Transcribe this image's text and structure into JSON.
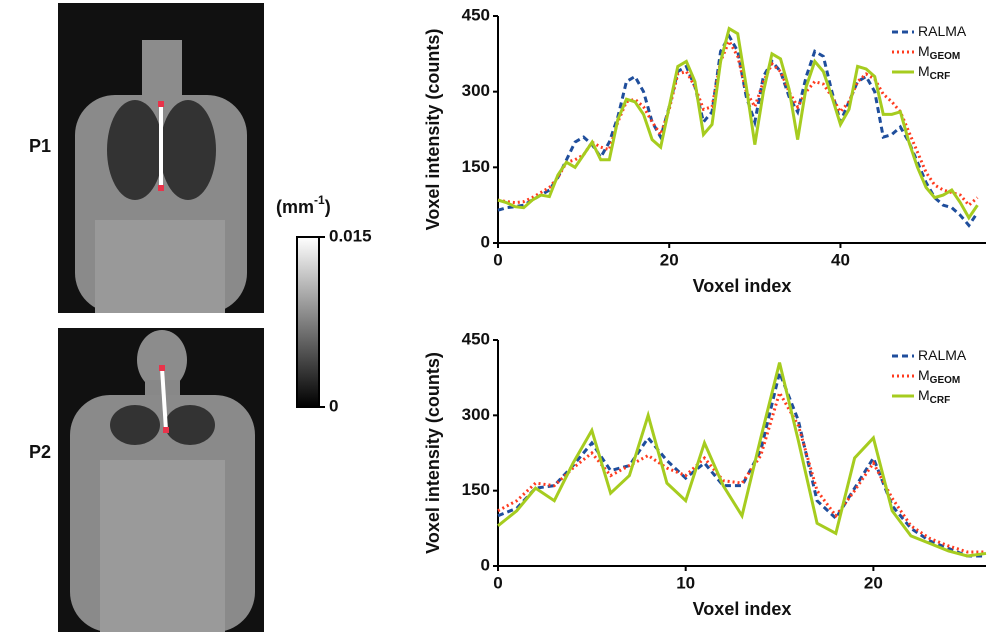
{
  "panels": [
    {
      "label": "P1"
    },
    {
      "label": "P2"
    }
  ],
  "colorbar": {
    "unit": "(mm",
    "unit_sup": "-1",
    "unit_end": ")",
    "lim": [
      0,
      0.015
    ],
    "ticks": [
      0,
      0.015
    ]
  },
  "chart_data": [
    {
      "type": "line",
      "x_label": "Voxel index",
      "y_label": "Voxel intensity (counts)",
      "x": [
        0,
        1,
        2,
        3,
        4,
        5,
        6,
        7,
        8,
        9,
        10,
        11,
        12,
        13,
        14,
        15,
        16,
        17,
        18,
        19,
        20,
        21,
        22,
        23,
        24,
        25,
        26,
        27,
        28,
        29,
        30,
        31,
        32,
        33,
        34,
        35,
        36,
        37,
        38,
        39,
        40,
        41,
        42,
        43,
        44,
        45,
        46,
        47,
        48,
        49,
        50,
        51,
        52,
        53,
        54,
        55,
        56
      ],
      "xlim": [
        0,
        57
      ],
      "xticks": [
        0,
        20,
        40
      ],
      "ylim": [
        0,
        450
      ],
      "yticks": [
        0,
        150,
        300,
        450
      ],
      "series": [
        {
          "name": "RALMA",
          "color": "#1f4e9c",
          "dash": "6,4",
          "values": [
            65,
            70,
            72,
            75,
            85,
            95,
            105,
            130,
            165,
            200,
            210,
            195,
            170,
            200,
            250,
            320,
            330,
            300,
            240,
            210,
            270,
            340,
            350,
            310,
            240,
            260,
            380,
            410,
            380,
            290,
            240,
            330,
            360,
            340,
            290,
            260,
            330,
            380,
            370,
            300,
            240,
            280,
            320,
            330,
            300,
            210,
            215,
            230,
            200,
            160,
            120,
            90,
            75,
            70,
            55,
            35,
            60
          ]
        },
        {
          "name": "M",
          "subscript": "GEOM",
          "color": "#ff3b1f",
          "dash": "2,3",
          "values": [
            85,
            82,
            80,
            82,
            90,
            100,
            110,
            130,
            160,
            165,
            175,
            200,
            190,
            185,
            240,
            280,
            285,
            270,
            240,
            215,
            265,
            335,
            340,
            310,
            265,
            270,
            360,
            400,
            370,
            300,
            270,
            320,
            355,
            340,
            300,
            270,
            300,
            320,
            315,
            290,
            260,
            280,
            320,
            335,
            325,
            295,
            280,
            260,
            220,
            180,
            140,
            115,
            105,
            100,
            95,
            75,
            90
          ]
        },
        {
          "name": "M",
          "subscript": "CRF",
          "color": "#a6cc1f",
          "dash": "",
          "values": [
            85,
            80,
            72,
            70,
            85,
            95,
            92,
            135,
            160,
            150,
            175,
            200,
            165,
            165,
            245,
            285,
            280,
            255,
            205,
            190,
            270,
            350,
            360,
            320,
            215,
            235,
            360,
            425,
            415,
            310,
            195,
            300,
            375,
            365,
            305,
            205,
            310,
            360,
            340,
            290,
            235,
            265,
            350,
            345,
            330,
            255,
            255,
            260,
            200,
            150,
            110,
            90,
            95,
            105,
            80,
            50,
            75
          ]
        }
      ]
    },
    {
      "type": "line",
      "x_label": "Voxel index",
      "y_label": "Voxel intensity (counts)",
      "x": [
        0,
        1,
        2,
        3,
        4,
        5,
        6,
        7,
        8,
        9,
        10,
        11,
        12,
        13,
        14,
        15,
        16,
        17,
        18,
        19,
        20,
        21,
        22,
        23,
        24,
        25,
        26
      ],
      "xlim": [
        0,
        26
      ],
      "xticks": [
        0,
        10,
        20
      ],
      "ylim": [
        0,
        450
      ],
      "yticks": [
        0,
        150,
        300,
        450
      ],
      "series": [
        {
          "name": "RALMA",
          "color": "#1f4e9c",
          "dash": "6,4",
          "values": [
            100,
            115,
            155,
            160,
            200,
            245,
            190,
            200,
            255,
            210,
            175,
            205,
            160,
            160,
            230,
            385,
            290,
            130,
            95,
            155,
            215,
            120,
            75,
            50,
            35,
            20,
            20
          ]
        },
        {
          "name": "M",
          "subscript": "GEOM",
          "color": "#ff3b1f",
          "dash": "2,3",
          "values": [
            110,
            130,
            165,
            160,
            195,
            225,
            180,
            200,
            220,
            195,
            180,
            215,
            170,
            165,
            220,
            345,
            280,
            150,
            100,
            150,
            205,
            135,
            80,
            55,
            40,
            28,
            28
          ]
        },
        {
          "name": "M",
          "subscript": "CRF",
          "color": "#a6cc1f",
          "dash": "",
          "values": [
            80,
            110,
            155,
            130,
            205,
            270,
            145,
            180,
            300,
            165,
            130,
            245,
            160,
            100,
            255,
            405,
            250,
            85,
            65,
            215,
            255,
            110,
            60,
            45,
            30,
            20,
            25
          ]
        }
      ]
    }
  ]
}
